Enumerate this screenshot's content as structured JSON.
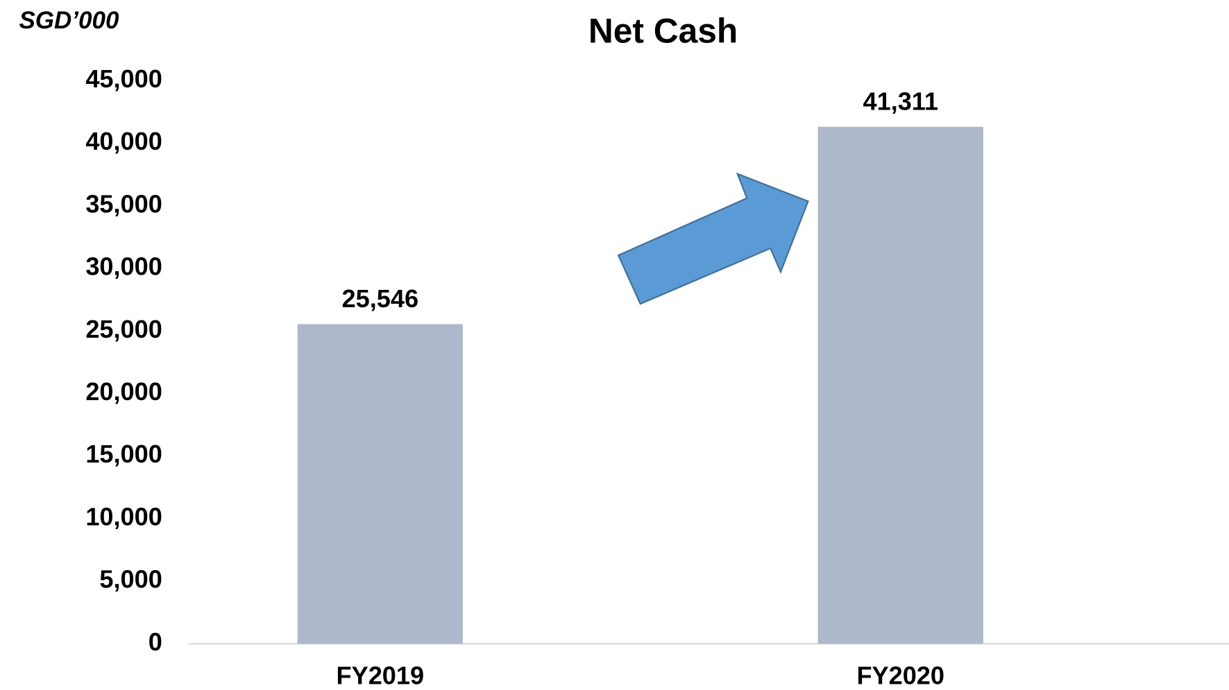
{
  "chart_data": {
    "type": "bar",
    "title": "Net Cash",
    "y_label": "SGD’000",
    "categories": [
      "FY2019",
      "FY2020"
    ],
    "values": [
      25546,
      41311
    ],
    "value_labels": [
      "25,546",
      "41,311"
    ],
    "color": "#adb9ca",
    "ylim": [
      0,
      45000
    ],
    "yticks": [
      0,
      {
        "value": 5000,
        "label": "5,000"
      },
      {
        "value": 10000,
        "label": "10,000"
      },
      {
        "value": 15000,
        "label": "15,000"
      },
      {
        "value": 20000,
        "label": "20,000"
      },
      {
        "value": 25000,
        "label": "25,000"
      },
      {
        "value": 30000,
        "label": "30,000"
      },
      {
        "value": 35000,
        "label": "35,000"
      },
      {
        "value": 40000,
        "label": "40,000"
      },
      {
        "value": 45000,
        "label": "45,000"
      }
    ],
    "grid": false
  }
}
